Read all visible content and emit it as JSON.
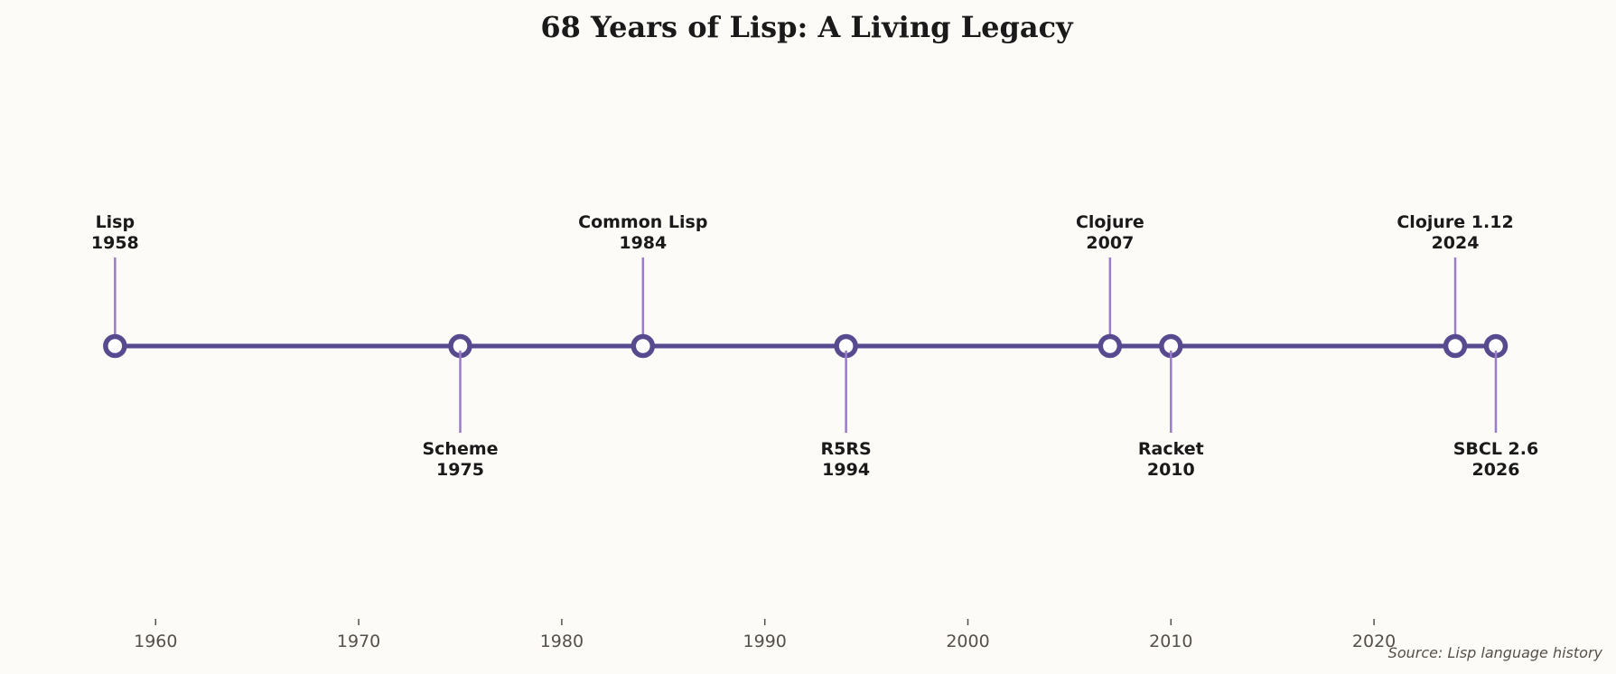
{
  "chart_data": {
    "type": "timeline",
    "title": "68 Years of Lisp: A Living Legacy",
    "source": "Source: Lisp language history",
    "xlim": [
      1954,
      2030
    ],
    "x_ticks": [
      1960,
      1970,
      1980,
      1990,
      2000,
      2010,
      2020
    ],
    "grid": false,
    "events": [
      {
        "name": "Lisp",
        "year": 1958,
        "side": "above"
      },
      {
        "name": "Scheme",
        "year": 1975,
        "side": "below"
      },
      {
        "name": "Common Lisp",
        "year": 1984,
        "side": "above"
      },
      {
        "name": "R5RS",
        "year": 1994,
        "side": "below"
      },
      {
        "name": "Clojure",
        "year": 2007,
        "side": "above"
      },
      {
        "name": "Racket",
        "year": 2010,
        "side": "below"
      },
      {
        "name": "Clojure 1.12",
        "year": 2024,
        "side": "above"
      },
      {
        "name": "SBCL 2.6",
        "year": 2026,
        "side": "below"
      }
    ],
    "colors": {
      "line": "#574a8f",
      "marker": "#574a8f",
      "stem": "#9a7cc8",
      "background": "#fcfbf8"
    }
  }
}
